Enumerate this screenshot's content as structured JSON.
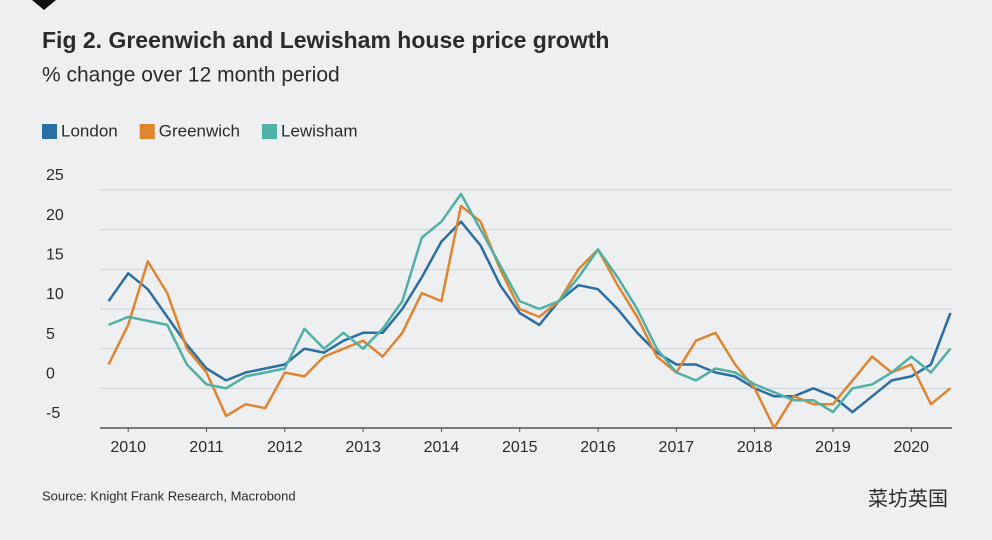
{
  "chart_data": {
    "type": "line",
    "title": "Fig 2. Greenwich and Lewisham house price growth",
    "subtitle": "% change over 12 month period",
    "source": "Source: Knight Frank Research, Macrobond",
    "watermark": "菜坊英国",
    "x": [
      2009.75,
      2010.0,
      2010.25,
      2010.5,
      2010.75,
      2011.0,
      2011.25,
      2011.5,
      2011.75,
      2012.0,
      2012.25,
      2012.5,
      2012.75,
      2013.0,
      2013.25,
      2013.5,
      2013.75,
      2014.0,
      2014.25,
      2014.5,
      2014.75,
      2015.0,
      2015.25,
      2015.5,
      2015.75,
      2016.0,
      2016.25,
      2016.5,
      2016.75,
      2017.0,
      2017.25,
      2017.5,
      2017.75,
      2018.0,
      2018.25,
      2018.5,
      2018.75,
      2019.0,
      2019.25,
      2019.5,
      2019.75,
      2020.0,
      2020.25,
      2020.5
    ],
    "series": [
      {
        "name": "London",
        "color": "#2a6ea6",
        "values": [
          11,
          14.5,
          12.5,
          9,
          5.5,
          2.5,
          1,
          2,
          2.5,
          3,
          5,
          4.5,
          6,
          7,
          7,
          10,
          14,
          18.5,
          21,
          18,
          13,
          9.5,
          8,
          11,
          13,
          12.5,
          10,
          7,
          4.5,
          3,
          3,
          2,
          1.5,
          0,
          -1,
          -1,
          0,
          -1,
          -3,
          -1,
          1,
          1.5,
          3,
          9.5
        ]
      },
      {
        "name": "Greenwich",
        "color": "#e0852f",
        "values": [
          3,
          8,
          16,
          12,
          5,
          2,
          -3.5,
          -2,
          -2.5,
          2,
          1.5,
          4,
          5,
          6,
          4,
          7,
          12,
          11,
          23,
          21,
          15,
          10,
          9,
          11,
          15,
          17.5,
          13,
          9,
          4,
          2,
          6,
          7,
          3,
          0,
          -5,
          -1,
          -2,
          -2,
          1,
          4,
          2,
          3,
          -2,
          0
        ]
      },
      {
        "name": "Lewisham",
        "color": "#4fb0a5",
        "values": [
          8,
          9,
          8.5,
          8,
          3,
          0.5,
          0,
          1.5,
          2,
          2.5,
          7.5,
          5,
          7,
          5,
          7.5,
          11,
          19,
          21,
          24.5,
          20,
          15.5,
          11,
          10,
          11,
          14,
          17.5,
          14,
          10,
          5,
          2,
          1,
          2.5,
          2,
          0.5,
          -0.5,
          -1.5,
          -1.5,
          -3,
          0,
          0.5,
          2,
          4,
          2,
          5
        ]
      }
    ],
    "xlim": [
      2009.64,
      2020.52
    ],
    "xticks": [
      2010,
      2011,
      2012,
      2013,
      2014,
      2015,
      2016,
      2017,
      2018,
      2019,
      2020
    ],
    "ylim": [
      -5,
      25
    ],
    "yticks": [
      25,
      20,
      15,
      10,
      5,
      0,
      -5
    ],
    "grid": true,
    "legend": "top"
  }
}
